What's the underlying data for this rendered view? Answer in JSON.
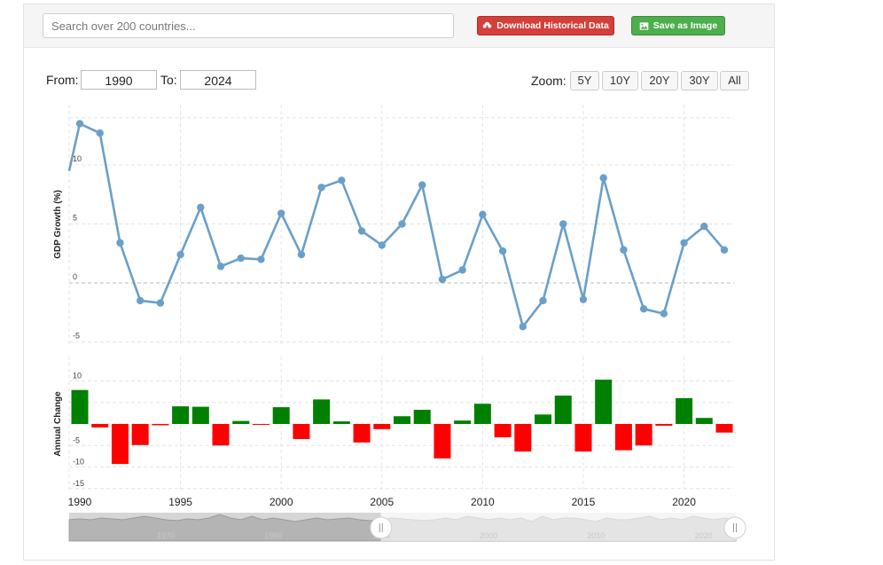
{
  "search": {
    "placeholder": "Search over 200 countries..."
  },
  "toolbar": {
    "download_label": "Download Historical Data",
    "save_label": "Save as Image",
    "download_color": "#d43f3a",
    "save_color": "#4cae4c"
  },
  "range": {
    "from_label": "From:",
    "from_value": "1990",
    "to_label": "To:",
    "to_value": "2024"
  },
  "zoom": {
    "label": "Zoom:",
    "options": [
      "5Y",
      "10Y",
      "20Y",
      "30Y",
      "All"
    ]
  },
  "chart_data": [
    {
      "type": "line",
      "ylabel": "GDP Growth (%)",
      "y_ticks": [
        -5,
        0,
        5,
        10
      ],
      "ylim": [
        -5,
        14
      ],
      "x": [
        1990,
        1991,
        1992,
        1993,
        1994,
        1995,
        1996,
        1997,
        1998,
        1999,
        2000,
        2001,
        2002,
        2003,
        2004,
        2005,
        2006,
        2007,
        2008,
        2009,
        2010,
        2011,
        2012,
        2013,
        2014,
        2015,
        2016,
        2017,
        2018,
        2019,
        2020,
        2021,
        2022
      ],
      "values": [
        13.5,
        12.7,
        3.4,
        -1.5,
        -1.7,
        2.4,
        6.4,
        1.4,
        2.1,
        2.0,
        5.9,
        2.4,
        8.1,
        8.7,
        4.4,
        3.2,
        5.0,
        8.3,
        0.3,
        1.1,
        5.8,
        2.7,
        -3.7,
        -1.5,
        5.0,
        -1.4,
        8.9,
        2.8,
        -2.2,
        -2.6,
        3.4,
        4.8,
        2.8
      ],
      "line_color": "#6a9fc9",
      "grid": true
    },
    {
      "type": "bar",
      "ylabel": "Annual Change",
      "y_ticks": [
        -15,
        -10,
        -5,
        0,
        5,
        10
      ],
      "ylim": [
        -15,
        10
      ],
      "x": [
        1990,
        1991,
        1992,
        1993,
        1994,
        1995,
        1996,
        1997,
        1998,
        1999,
        2000,
        2001,
        2002,
        2003,
        2004,
        2005,
        2006,
        2007,
        2008,
        2009,
        2010,
        2011,
        2012,
        2013,
        2014,
        2015,
        2016,
        2017,
        2018,
        2019,
        2020,
        2021,
        2022
      ],
      "values": [
        7.9,
        -0.8,
        -9.3,
        -4.9,
        -0.3,
        4.1,
        4.0,
        -5.0,
        0.7,
        -0.1,
        3.9,
        -3.5,
        5.7,
        0.6,
        -4.3,
        -1.2,
        1.8,
        3.3,
        -8.0,
        0.8,
        4.7,
        -3.1,
        -6.4,
        2.2,
        6.6,
        -6.4,
        10.3,
        -6.1,
        -5.0,
        -0.4,
        6.0,
        1.4,
        -2.0
      ],
      "positive_color": "#008000",
      "negative_color": "#ff0000",
      "grid": true
    }
  ],
  "x_axis": {
    "ticks": [
      1990,
      1995,
      2000,
      2005,
      2010,
      2015,
      2020
    ],
    "range": [
      1990,
      2022
    ]
  },
  "navigator": {
    "ticks": [
      1970,
      1980,
      1990,
      2000,
      2010,
      2020
    ],
    "range": [
      1961,
      2023
    ],
    "selected_range": [
      1990,
      2024
    ]
  }
}
